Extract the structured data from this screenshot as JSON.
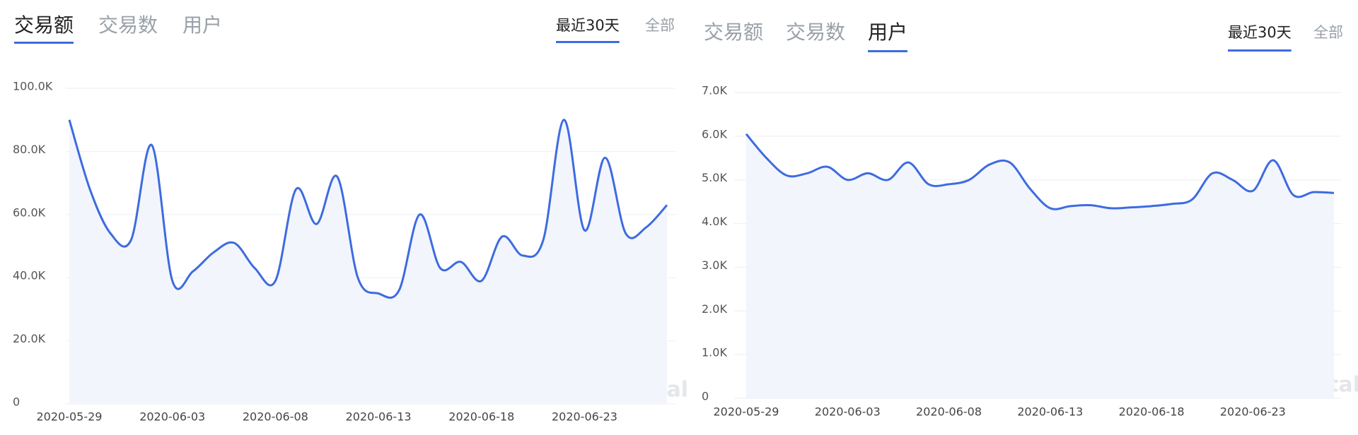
{
  "chart_data": [
    {
      "type": "line",
      "tabs": [
        "交易额",
        "交易数",
        "用户"
      ],
      "active_tab": 0,
      "range_tabs": [
        "最近30天",
        "全部"
      ],
      "active_range": 0,
      "watermark": "DAppTotal",
      "categories": [
        "2020-05-29",
        null,
        null,
        null,
        null,
        "2020-06-03",
        null,
        null,
        null,
        null,
        "2020-06-08",
        null,
        null,
        null,
        null,
        "2020-06-13",
        null,
        null,
        null,
        null,
        "2020-06-18",
        null,
        null,
        null,
        null,
        "2020-06-23",
        null,
        null,
        null,
        null
      ],
      "series": [
        {
          "color": "#3d6be0",
          "values": [
            90,
            68,
            54,
            52,
            82,
            39,
            42,
            48,
            51,
            43,
            39,
            68,
            57,
            72,
            40,
            35,
            36,
            60,
            43,
            45,
            39,
            53,
            47,
            52,
            90,
            55,
            78,
            54,
            56,
            63
          ]
        }
      ],
      "ylim": [
        0,
        100
      ],
      "yticks": [
        0,
        {
          "value": 20,
          "label": "20.0K"
        },
        {
          "value": 40,
          "label": "40.0K"
        },
        {
          "value": 60,
          "label": "60.0K"
        },
        {
          "value": 80,
          "label": "80.0K"
        },
        {
          "value": 100,
          "label": "100.0K"
        }
      ],
      "grid": true
    },
    {
      "type": "line",
      "tabs": [
        "交易额",
        "交易数",
        "用户"
      ],
      "active_tab": 2,
      "range_tabs": [
        "最近30天",
        "全部"
      ],
      "active_range": 0,
      "watermark": "DAppTotal",
      "categories": [
        "2020-05-29",
        null,
        null,
        null,
        null,
        "2020-06-03",
        null,
        null,
        null,
        null,
        "2020-06-08",
        null,
        null,
        null,
        null,
        "2020-06-13",
        null,
        null,
        null,
        null,
        "2020-06-18",
        null,
        null,
        null,
        null,
        "2020-06-23",
        null,
        null,
        null,
        null
      ],
      "series": [
        {
          "color": "#3d6be0",
          "values": [
            6.05,
            5.5,
            5.1,
            5.15,
            5.3,
            5.0,
            5.15,
            5.0,
            5.4,
            4.9,
            4.9,
            5.0,
            5.35,
            5.4,
            4.8,
            4.35,
            4.4,
            4.42,
            4.35,
            4.37,
            4.4,
            4.45,
            4.55,
            5.15,
            5.0,
            4.75,
            5.45,
            4.65,
            4.72,
            4.7
          ]
        }
      ],
      "ylim": [
        0,
        7
      ],
      "yticks": [
        0,
        {
          "value": 1,
          "label": "1.0K"
        },
        {
          "value": 2,
          "label": "2.0K"
        },
        {
          "value": 3,
          "label": "3.0K"
        },
        {
          "value": 4,
          "label": "4.0K"
        },
        {
          "value": 5,
          "label": "5.0K"
        },
        {
          "value": 6,
          "label": "6.0K"
        },
        {
          "value": 7,
          "label": "7.0K"
        }
      ],
      "grid": true
    }
  ]
}
